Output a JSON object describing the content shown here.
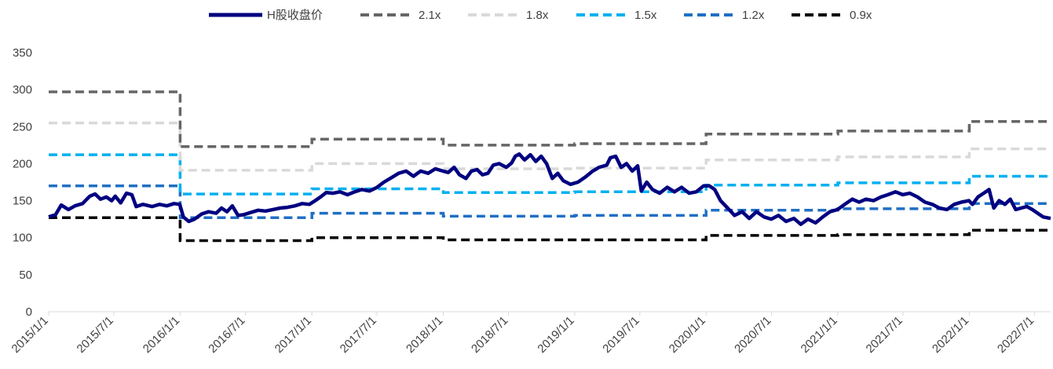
{
  "chart_data": {
    "type": "line",
    "title": "",
    "xlabel": "",
    "ylabel": "",
    "ylim": [
      0,
      350
    ],
    "yticks": [
      0,
      50,
      100,
      150,
      200,
      250,
      300,
      350
    ],
    "x_tick_labels": [
      "2015/1/1",
      "2015/7/1",
      "2016/1/1",
      "2016/7/1",
      "2017/1/1",
      "2017/7/1",
      "2018/1/1",
      "2018/7/1",
      "2019/1/1",
      "2019/7/1",
      "2020/1/1",
      "2020/7/1",
      "2021/1/1",
      "2021/7/1",
      "2022/1/1",
      "2022/7/1"
    ],
    "x_range": [
      "2015/1/1",
      "2022/8/15"
    ],
    "grid": false,
    "legend_position": "top-center",
    "series": [
      {
        "name": "H股收盘价",
        "style": "solid",
        "color": "#000080",
        "points": [
          [
            "2015/1/1",
            128
          ],
          [
            "2015/1/20",
            131
          ],
          [
            "2015/2/5",
            144
          ],
          [
            "2015/2/25",
            138
          ],
          [
            "2015/3/15",
            143
          ],
          [
            "2015/4/5",
            146
          ],
          [
            "2015/4/25",
            156
          ],
          [
            "2015/5/10",
            159
          ],
          [
            "2015/5/25",
            152
          ],
          [
            "2015/6/10",
            155
          ],
          [
            "2015/6/25",
            150
          ],
          [
            "2015/7/5",
            156
          ],
          [
            "2015/7/20",
            147
          ],
          [
            "2015/8/5",
            160
          ],
          [
            "2015/8/20",
            158
          ],
          [
            "2015/9/1",
            142
          ],
          [
            "2015/9/20",
            145
          ],
          [
            "2015/10/15",
            142
          ],
          [
            "2015/11/5",
            145
          ],
          [
            "2015/11/25",
            143
          ],
          [
            "2015/12/15",
            146
          ],
          [
            "2015/12/31",
            145
          ],
          [
            "2016/1/10",
            128
          ],
          [
            "2016/1/25",
            122
          ],
          [
            "2016/2/10",
            125
          ],
          [
            "2016/3/1",
            132
          ],
          [
            "2016/3/20",
            135
          ],
          [
            "2016/4/10",
            133
          ],
          [
            "2016/4/25",
            140
          ],
          [
            "2016/5/10",
            135
          ],
          [
            "2016/5/25",
            143
          ],
          [
            "2016/6/10",
            130
          ],
          [
            "2016/6/25",
            131
          ],
          [
            "2016/7/15",
            134
          ],
          [
            "2016/8/5",
            137
          ],
          [
            "2016/8/25",
            136
          ],
          [
            "2016/9/15",
            138
          ],
          [
            "2016/10/5",
            140
          ],
          [
            "2016/10/25",
            141
          ],
          [
            "2016/11/15",
            143
          ],
          [
            "2016/12/5",
            146
          ],
          [
            "2016/12/25",
            145
          ],
          [
            "2017/1/10",
            150
          ],
          [
            "2017/1/25",
            155
          ],
          [
            "2017/2/10",
            161
          ],
          [
            "2017/3/1",
            160
          ],
          [
            "2017/3/20",
            162
          ],
          [
            "2017/4/10",
            158
          ],
          [
            "2017/4/30",
            162
          ],
          [
            "2017/5/20",
            165
          ],
          [
            "2017/6/10",
            163
          ],
          [
            "2017/7/1",
            168
          ],
          [
            "2017/7/20",
            175
          ],
          [
            "2017/8/10",
            181
          ],
          [
            "2017/8/30",
            187
          ],
          [
            "2017/9/20",
            190
          ],
          [
            "2017/10/10",
            183
          ],
          [
            "2017/10/30",
            190
          ],
          [
            "2017/11/20",
            187
          ],
          [
            "2017/12/10",
            193
          ],
          [
            "2017/12/31",
            190
          ],
          [
            "2018/1/15",
            188
          ],
          [
            "2018/1/31",
            195
          ],
          [
            "2018/2/15",
            185
          ],
          [
            "2018/3/5",
            180
          ],
          [
            "2018/3/20",
            190
          ],
          [
            "2018/4/5",
            192
          ],
          [
            "2018/4/20",
            185
          ],
          [
            "2018/5/5",
            187
          ],
          [
            "2018/5/20",
            198
          ],
          [
            "2018/6/5",
            200
          ],
          [
            "2018/6/25",
            195
          ],
          [
            "2018/7/10",
            201
          ],
          [
            "2018/7/20",
            210
          ],
          [
            "2018/7/31",
            213
          ],
          [
            "2018/8/15",
            205
          ],
          [
            "2018/8/31",
            212
          ],
          [
            "2018/9/15",
            203
          ],
          [
            "2018/9/30",
            210
          ],
          [
            "2018/10/15",
            200
          ],
          [
            "2018/10/31",
            180
          ],
          [
            "2018/11/15",
            187
          ],
          [
            "2018/11/30",
            177
          ],
          [
            "2018/12/20",
            172
          ],
          [
            "2019/1/10",
            175
          ],
          [
            "2019/1/31",
            182
          ],
          [
            "2019/2/20",
            190
          ],
          [
            "2019/3/10",
            195
          ],
          [
            "2019/3/31",
            198
          ],
          [
            "2019/4/10",
            208
          ],
          [
            "2019/4/25",
            210
          ],
          [
            "2019/5/10",
            195
          ],
          [
            "2019/5/25",
            200
          ],
          [
            "2019/6/10",
            190
          ],
          [
            "2019/6/25",
            197
          ],
          [
            "2019/7/5",
            163
          ],
          [
            "2019/7/20",
            175
          ],
          [
            "2019/8/5",
            165
          ],
          [
            "2019/8/25",
            160
          ],
          [
            "2019/9/15",
            168
          ],
          [
            "2019/10/5",
            162
          ],
          [
            "2019/10/25",
            168
          ],
          [
            "2019/11/15",
            160
          ],
          [
            "2019/12/5",
            162
          ],
          [
            "2019/12/25",
            170
          ],
          [
            "2020/1/10",
            170
          ],
          [
            "2020/1/25",
            165
          ],
          [
            "2020/2/10",
            150
          ],
          [
            "2020/3/1",
            140
          ],
          [
            "2020/3/20",
            130
          ],
          [
            "2020/4/10",
            135
          ],
          [
            "2020/4/30",
            126
          ],
          [
            "2020/5/20",
            135
          ],
          [
            "2020/6/10",
            128
          ],
          [
            "2020/6/30",
            125
          ],
          [
            "2020/7/20",
            130
          ],
          [
            "2020/8/10",
            122
          ],
          [
            "2020/9/1",
            126
          ],
          [
            "2020/9/20",
            118
          ],
          [
            "2020/10/10",
            125
          ],
          [
            "2020/10/31",
            120
          ],
          [
            "2020/11/20",
            128
          ],
          [
            "2020/12/10",
            135
          ],
          [
            "2020/12/31",
            138
          ],
          [
            "2021/1/20",
            145
          ],
          [
            "2021/2/10",
            152
          ],
          [
            "2021/3/1",
            148
          ],
          [
            "2021/3/20",
            152
          ],
          [
            "2021/4/10",
            150
          ],
          [
            "2021/5/1",
            155
          ],
          [
            "2021/5/20",
            158
          ],
          [
            "2021/6/10",
            162
          ],
          [
            "2021/6/30",
            158
          ],
          [
            "2021/7/20",
            160
          ],
          [
            "2021/8/10",
            155
          ],
          [
            "2021/8/31",
            148
          ],
          [
            "2021/9/20",
            145
          ],
          [
            "2021/10/10",
            140
          ],
          [
            "2021/10/31",
            138
          ],
          [
            "2021/11/20",
            145
          ],
          [
            "2021/12/10",
            148
          ],
          [
            "2021/12/31",
            150
          ],
          [
            "2022/1/10",
            145
          ],
          [
            "2022/1/25",
            155
          ],
          [
            "2022/2/10",
            160
          ],
          [
            "2022/2/25",
            165
          ],
          [
            "2022/3/10",
            140
          ],
          [
            "2022/3/25",
            150
          ],
          [
            "2022/4/10",
            145
          ],
          [
            "2022/4/25",
            152
          ],
          [
            "2022/5/10",
            138
          ],
          [
            "2022/5/25",
            140
          ],
          [
            "2022/6/10",
            142
          ],
          [
            "2022/6/25",
            138
          ],
          [
            "2022/7/10",
            133
          ],
          [
            "2022/7/25",
            128
          ],
          [
            "2022/8/15",
            126
          ]
        ]
      },
      {
        "name": "2.1x",
        "style": "dashed",
        "color": "#666666",
        "steps": [
          [
            "2015/1/1",
            297
          ],
          [
            "2016/1/1",
            223
          ],
          [
            "2017/1/1",
            233
          ],
          [
            "2018/1/1",
            225
          ],
          [
            "2019/1/1",
            227
          ],
          [
            "2020/1/1",
            240
          ],
          [
            "2021/1/1",
            244
          ],
          [
            "2022/1/1",
            257
          ]
        ]
      },
      {
        "name": "1.8x",
        "style": "dashed",
        "color": "#D9D9D9",
        "steps": [
          [
            "2015/1/1",
            255
          ],
          [
            "2016/1/1",
            191
          ],
          [
            "2017/1/1",
            200
          ],
          [
            "2018/1/1",
            193
          ],
          [
            "2019/1/1",
            194
          ],
          [
            "2020/1/1",
            205
          ],
          [
            "2021/1/1",
            209
          ],
          [
            "2022/1/1",
            220
          ]
        ]
      },
      {
        "name": "1.5x",
        "style": "dashed",
        "color": "#00B0F0",
        "steps": [
          [
            "2015/1/1",
            212
          ],
          [
            "2016/1/1",
            159
          ],
          [
            "2017/1/1",
            166
          ],
          [
            "2018/1/1",
            161
          ],
          [
            "2019/1/1",
            162
          ],
          [
            "2020/1/1",
            171
          ],
          [
            "2021/1/1",
            174
          ],
          [
            "2022/1/1",
            183
          ]
        ]
      },
      {
        "name": "1.2x",
        "style": "dashed",
        "color": "#1F6FC5",
        "steps": [
          [
            "2015/1/1",
            170
          ],
          [
            "2016/1/1",
            127
          ],
          [
            "2017/1/1",
            133
          ],
          [
            "2018/1/1",
            129
          ],
          [
            "2019/1/1",
            130
          ],
          [
            "2020/1/1",
            137
          ],
          [
            "2021/1/1",
            139
          ],
          [
            "2022/1/1",
            146
          ]
        ]
      },
      {
        "name": "0.9x",
        "style": "dashed",
        "color": "#000000",
        "steps": [
          [
            "2015/1/1",
            127
          ],
          [
            "2016/1/1",
            96
          ],
          [
            "2017/1/1",
            100
          ],
          [
            "2018/1/1",
            97
          ],
          [
            "2019/1/1",
            97
          ],
          [
            "2020/1/1",
            103
          ],
          [
            "2021/1/1",
            104
          ],
          [
            "2022/1/1",
            110
          ]
        ]
      }
    ]
  }
}
